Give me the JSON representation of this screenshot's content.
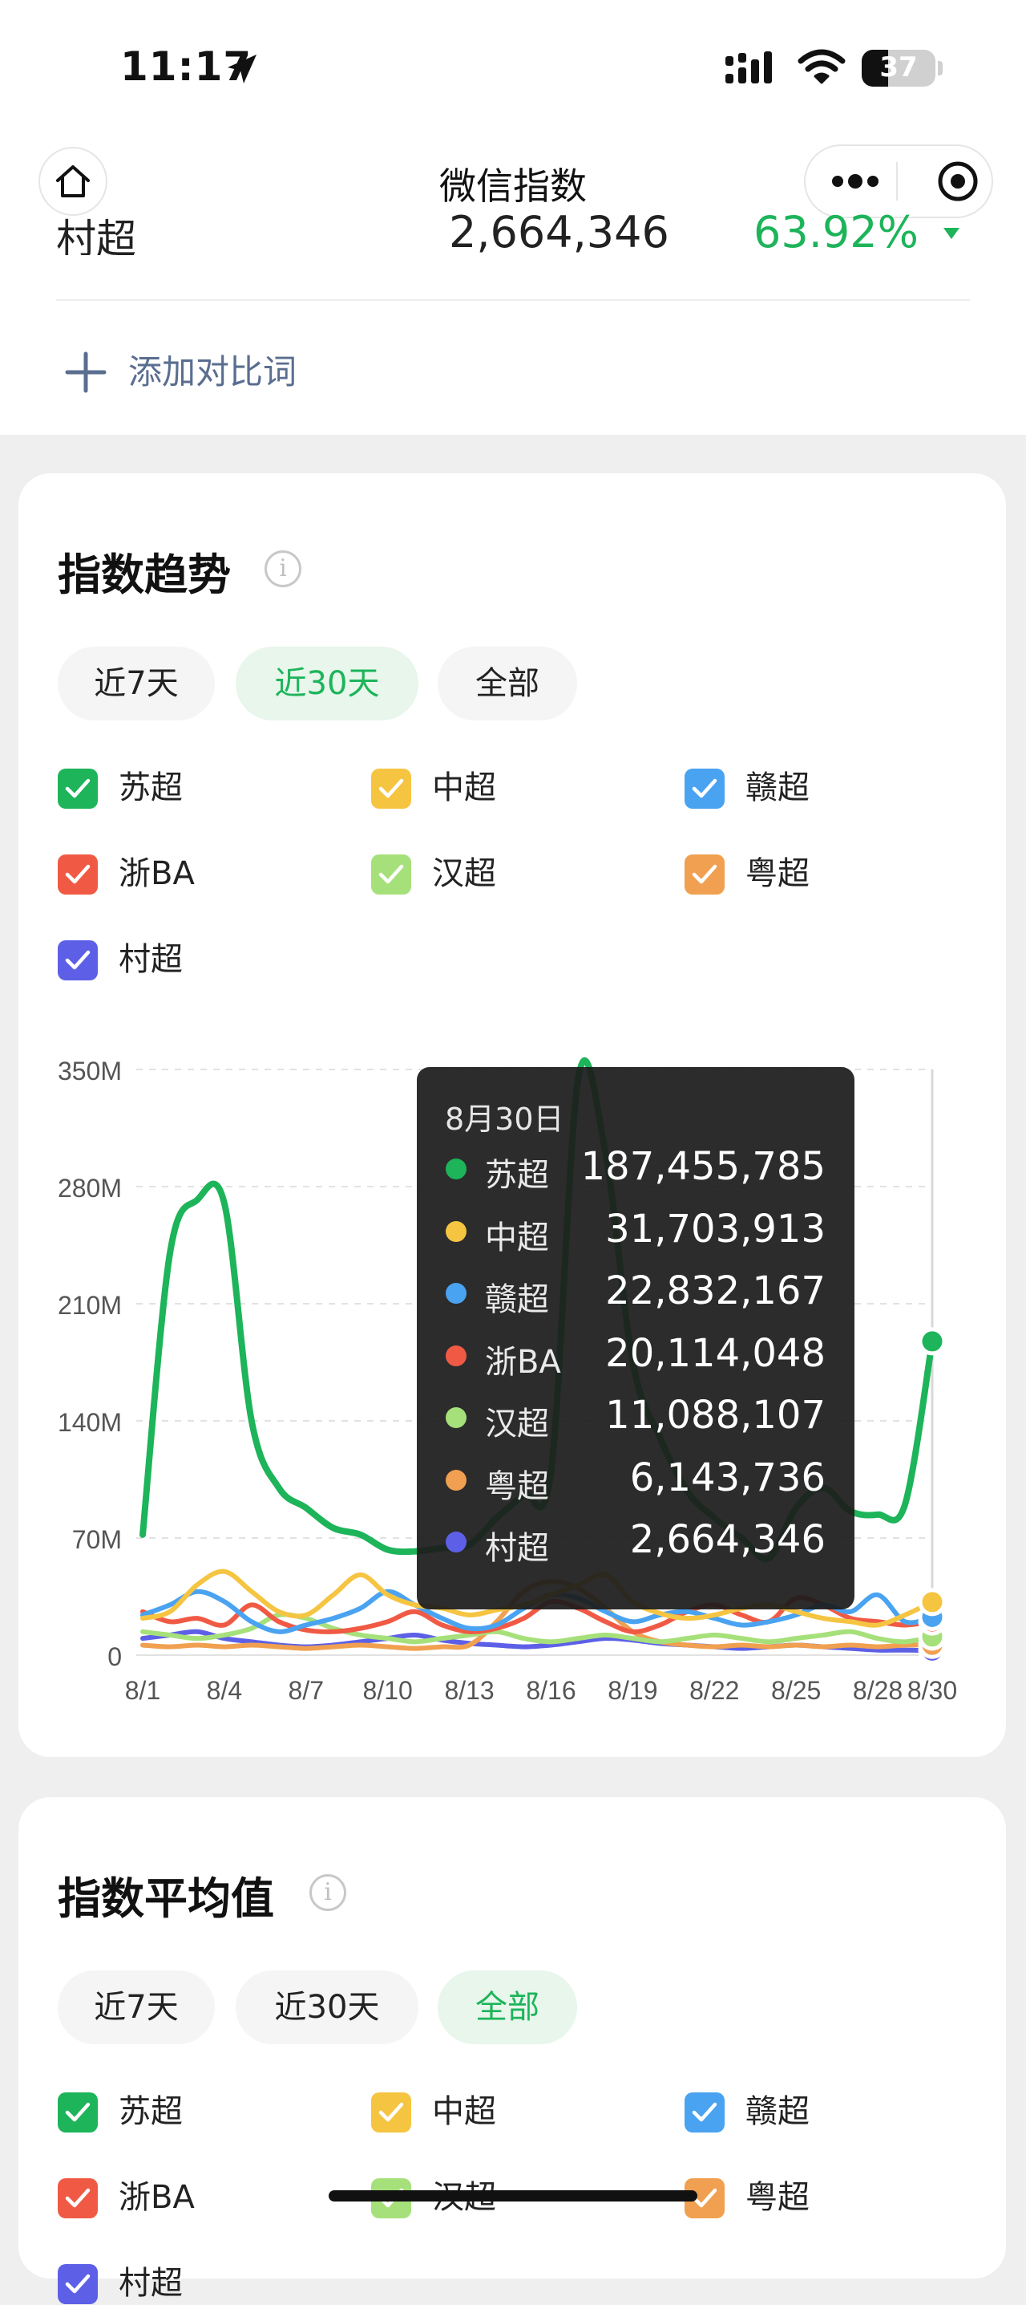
{
  "status_bar": {
    "time": "11:17",
    "battery": "37"
  },
  "nav": {
    "title": "微信指数"
  },
  "cut_row": {
    "name": "村超",
    "value": "2,664,346",
    "percent": "63.92%"
  },
  "add_compare": {
    "label": "添加对比词"
  },
  "trend": {
    "title": "指数趋势",
    "info": "i",
    "ranges": [
      "近7天",
      "近30天",
      "全部"
    ],
    "active_range": "近30天"
  },
  "average": {
    "title": "指数平均值",
    "info": "i",
    "ranges": [
      "近7天",
      "近30天",
      "全部"
    ],
    "active_range": "全部"
  },
  "legend": [
    {
      "name": "苏超",
      "color": "#1db45a"
    },
    {
      "name": "中超",
      "color": "#f5c542"
    },
    {
      "name": "赣超",
      "color": "#4aa3f0"
    },
    {
      "name": "浙BA",
      "color": "#f05a45"
    },
    {
      "name": "汉超",
      "color": "#a6e07a"
    },
    {
      "name": "粤超",
      "color": "#f0a050"
    },
    {
      "name": "村超",
      "color": "#5d60e6"
    }
  ],
  "tooltip": {
    "date": "8月30日",
    "rows": [
      {
        "name": "苏超",
        "value": "187,455,785"
      },
      {
        "name": "中超",
        "value": "31,703,913"
      },
      {
        "name": "赣超",
        "value": "22,832,167"
      },
      {
        "name": "浙BA",
        "value": "20,114,048"
      },
      {
        "name": "汉超",
        "value": "11,088,107"
      },
      {
        "name": "粤超",
        "value": "6,143,736"
      },
      {
        "name": "村超",
        "value": "2,664,346"
      }
    ]
  },
  "chart_data": {
    "type": "line",
    "x": [
      "8/1",
      "8/2",
      "8/3",
      "8/4",
      "8/5",
      "8/6",
      "8/7",
      "8/8",
      "8/9",
      "8/10",
      "8/11",
      "8/12",
      "8/13",
      "8/14",
      "8/15",
      "8/16",
      "8/17",
      "8/18",
      "8/19",
      "8/20",
      "8/21",
      "8/22",
      "8/23",
      "8/24",
      "8/25",
      "8/26",
      "8/27",
      "8/28",
      "8/29",
      "8/30"
    ],
    "x_ticks": [
      "8/1",
      "8/4",
      "8/7",
      "8/10",
      "8/13",
      "8/16",
      "8/19",
      "8/22",
      "8/25",
      "8/28",
      "8/30"
    ],
    "y_ticks": [
      "0",
      "70M",
      "140M",
      "210M",
      "280M",
      "350M"
    ],
    "ylim": [
      0,
      350
    ],
    "y_unit": "M",
    "series": [
      {
        "name": "苏超",
        "color": "#1db45a",
        "values": [
          72,
          240,
          272,
          270,
          140,
          100,
          88,
          76,
          72,
          63,
          62,
          64,
          66,
          82,
          96,
          110,
          345,
          300,
          175,
          130,
          98,
          82,
          70,
          58,
          88,
          100,
          86,
          84,
          90,
          187.5
        ]
      },
      {
        "name": "中超",
        "color": "#f5c542",
        "values": [
          22,
          26,
          42,
          50,
          38,
          26,
          24,
          36,
          48,
          36,
          30,
          28,
          24,
          27,
          30,
          36,
          42,
          48,
          32,
          25,
          22,
          24,
          28,
          30,
          26,
          22,
          20,
          18,
          24,
          31.7
        ]
      },
      {
        "name": "赣超",
        "color": "#4aa3f0",
        "values": [
          24,
          30,
          38,
          32,
          20,
          14,
          18,
          22,
          28,
          38,
          30,
          22,
          16,
          18,
          28,
          36,
          34,
          26,
          20,
          24,
          26,
          22,
          18,
          20,
          24,
          30,
          26,
          36,
          20,
          22.8
        ]
      },
      {
        "name": "浙BA",
        "color": "#f05a45",
        "values": [
          26,
          20,
          22,
          18,
          30,
          20,
          15,
          14,
          16,
          20,
          26,
          18,
          14,
          16,
          22,
          32,
          28,
          20,
          14,
          18,
          26,
          30,
          24,
          20,
          34,
          30,
          22,
          20,
          18,
          20.1
        ]
      },
      {
        "name": "汉超",
        "color": "#a6e07a",
        "values": [
          14,
          12,
          10,
          12,
          16,
          24,
          22,
          16,
          12,
          10,
          8,
          10,
          12,
          14,
          10,
          8,
          10,
          12,
          10,
          8,
          10,
          12,
          10,
          8,
          10,
          12,
          14,
          10,
          8,
          11.1
        ]
      },
      {
        "name": "粤超",
        "color": "#f0a050",
        "values": [
          6,
          5,
          6,
          5,
          6,
          5,
          4,
          5,
          6,
          5,
          4,
          5,
          6,
          20,
          38,
          44,
          40,
          28,
          14,
          8,
          6,
          5,
          6,
          5,
          6,
          5,
          6,
          5,
          6,
          6.1
        ]
      },
      {
        "name": "村超",
        "color": "#5d60e6",
        "values": [
          10,
          12,
          14,
          10,
          8,
          6,
          5,
          6,
          8,
          10,
          12,
          9,
          7,
          6,
          5,
          6,
          8,
          10,
          9,
          7,
          6,
          5,
          4,
          5,
          6,
          5,
          4,
          3,
          3,
          2.7
        ]
      }
    ]
  }
}
